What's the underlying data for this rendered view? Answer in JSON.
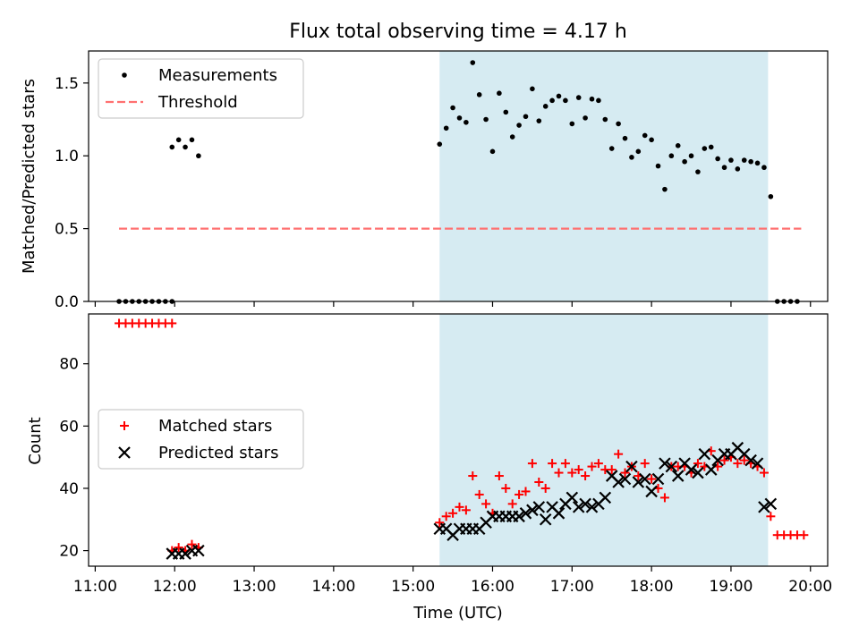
{
  "figure": {
    "title": "Flux total observing time = 4.17 h",
    "xlabel": "Time (UTC)"
  },
  "chart_data": [
    {
      "type": "scatter",
      "panel": "top",
      "ylabel": "Matched/Predicted stars",
      "xlim": [
        "10:55",
        "20:13"
      ],
      "ylim": [
        0,
        1.72
      ],
      "yticks": [
        "0.0",
        "0.5",
        "1.0",
        "1.5"
      ],
      "shaded_span": [
        "15:20",
        "19:28"
      ],
      "shade_color": "#add8e6",
      "legend": {
        "placement": "top-left",
        "entries": [
          "Measurements",
          "Threshold"
        ]
      },
      "series": [
        {
          "name": "Measurements",
          "marker": "dot",
          "color": "#000000",
          "points": [
            [
              "11:18",
              0
            ],
            [
              "11:23",
              0
            ],
            [
              "11:28",
              0
            ],
            [
              "11:33",
              0
            ],
            [
              "11:38",
              0
            ],
            [
              "11:43",
              0
            ],
            [
              "11:48",
              0
            ],
            [
              "11:53",
              0
            ],
            [
              "11:58",
              0
            ],
            [
              "11:58",
              1.06
            ],
            [
              "12:03",
              1.11
            ],
            [
              "12:08",
              1.06
            ],
            [
              "12:13",
              1.11
            ],
            [
              "12:18",
              1.0
            ],
            [
              "15:20",
              1.08
            ],
            [
              "15:25",
              1.19
            ],
            [
              "15:30",
              1.33
            ],
            [
              "15:35",
              1.26
            ],
            [
              "15:40",
              1.23
            ],
            [
              "15:45",
              1.64
            ],
            [
              "15:50",
              1.42
            ],
            [
              "15:55",
              1.25
            ],
            [
              "16:00",
              1.03
            ],
            [
              "16:05",
              1.43
            ],
            [
              "16:10",
              1.3
            ],
            [
              "16:15",
              1.13
            ],
            [
              "16:20",
              1.21
            ],
            [
              "16:25",
              1.27
            ],
            [
              "16:30",
              1.46
            ],
            [
              "16:35",
              1.24
            ],
            [
              "16:40",
              1.34
            ],
            [
              "16:45",
              1.38
            ],
            [
              "16:50",
              1.41
            ],
            [
              "16:55",
              1.38
            ],
            [
              "17:00",
              1.22
            ],
            [
              "17:05",
              1.4
            ],
            [
              "17:10",
              1.26
            ],
            [
              "17:15",
              1.39
            ],
            [
              "17:20",
              1.38
            ],
            [
              "17:25",
              1.25
            ],
            [
              "17:30",
              1.05
            ],
            [
              "17:35",
              1.22
            ],
            [
              "17:40",
              1.12
            ],
            [
              "17:45",
              0.99
            ],
            [
              "17:50",
              1.03
            ],
            [
              "17:55",
              1.14
            ],
            [
              "18:00",
              1.11
            ],
            [
              "18:05",
              0.93
            ],
            [
              "18:10",
              0.77
            ],
            [
              "18:15",
              1.0
            ],
            [
              "18:20",
              1.07
            ],
            [
              "18:25",
              0.96
            ],
            [
              "18:30",
              1.0
            ],
            [
              "18:35",
              0.89
            ],
            [
              "18:40",
              1.05
            ],
            [
              "18:45",
              1.06
            ],
            [
              "18:50",
              0.98
            ],
            [
              "18:55",
              0.92
            ],
            [
              "19:00",
              0.97
            ],
            [
              "19:05",
              0.91
            ],
            [
              "19:10",
              0.97
            ],
            [
              "19:15",
              0.96
            ],
            [
              "19:20",
              0.95
            ],
            [
              "19:25",
              0.92
            ],
            [
              "19:30",
              0.72
            ],
            [
              "19:35",
              0
            ],
            [
              "19:40",
              0
            ],
            [
              "19:45",
              0
            ],
            [
              "19:50",
              0
            ]
          ]
        },
        {
          "name": "Threshold",
          "marker": "dashed-line",
          "color": "#ff7070",
          "points": [
            [
              "11:18",
              0.5
            ],
            [
              "19:53",
              0.5
            ]
          ]
        }
      ]
    },
    {
      "type": "scatter",
      "panel": "bottom",
      "ylabel": "Count",
      "xlim": [
        "10:55",
        "20:13"
      ],
      "ylim": [
        15,
        96
      ],
      "yticks": [
        "20",
        "40",
        "60",
        "80"
      ],
      "shaded_span": [
        "15:20",
        "19:28"
      ],
      "shade_color": "#add8e6",
      "legend": {
        "placement": "center-left",
        "entries": [
          "Matched stars",
          "Predicted stars"
        ]
      },
      "xticks": [
        "11:00",
        "12:00",
        "13:00",
        "14:00",
        "15:00",
        "16:00",
        "17:00",
        "18:00",
        "19:00",
        "20:00"
      ],
      "series": [
        {
          "name": "Matched stars",
          "marker": "plus",
          "color": "#ff0000",
          "points": [
            [
              "11:18",
              93
            ],
            [
              "11:23",
              93
            ],
            [
              "11:28",
              93
            ],
            [
              "11:33",
              93
            ],
            [
              "11:38",
              93
            ],
            [
              "11:43",
              93
            ],
            [
              "11:48",
              93
            ],
            [
              "11:53",
              93
            ],
            [
              "11:58",
              93
            ],
            [
              "11:58",
              20
            ],
            [
              "12:03",
              21
            ],
            [
              "12:08",
              20
            ],
            [
              "12:13",
              22
            ],
            [
              "12:18",
              21
            ],
            [
              "15:20",
              29
            ],
            [
              "15:25",
              31
            ],
            [
              "15:30",
              32
            ],
            [
              "15:35",
              34
            ],
            [
              "15:40",
              33
            ],
            [
              "15:45",
              44
            ],
            [
              "15:50",
              38
            ],
            [
              "15:55",
              35
            ],
            [
              "16:00",
              32
            ],
            [
              "16:05",
              44
            ],
            [
              "16:10",
              40
            ],
            [
              "16:15",
              35
            ],
            [
              "16:20",
              38
            ],
            [
              "16:25",
              39
            ],
            [
              "16:30",
              48
            ],
            [
              "16:35",
              42
            ],
            [
              "16:40",
              40
            ],
            [
              "16:45",
              48
            ],
            [
              "16:50",
              45
            ],
            [
              "16:55",
              48
            ],
            [
              "17:00",
              45
            ],
            [
              "17:05",
              46
            ],
            [
              "17:10",
              44
            ],
            [
              "17:15",
              47
            ],
            [
              "17:20",
              48
            ],
            [
              "17:25",
              46
            ],
            [
              "17:30",
              46
            ],
            [
              "17:35",
              51
            ],
            [
              "17:40",
              45
            ],
            [
              "17:45",
              47
            ],
            [
              "17:50",
              44
            ],
            [
              "17:55",
              48
            ],
            [
              "18:00",
              43
            ],
            [
              "18:05",
              40
            ],
            [
              "18:10",
              37
            ],
            [
              "18:15",
              47
            ],
            [
              "18:20",
              47
            ],
            [
              "18:25",
              47
            ],
            [
              "18:30",
              45
            ],
            [
              "18:35",
              48
            ],
            [
              "18:40",
              47
            ],
            [
              "18:45",
              52
            ],
            [
              "18:50",
              47
            ],
            [
              "18:55",
              49
            ],
            [
              "19:00",
              50
            ],
            [
              "19:05",
              48
            ],
            [
              "19:10",
              49
            ],
            [
              "19:15",
              48
            ],
            [
              "19:20",
              47
            ],
            [
              "19:25",
              45
            ],
            [
              "19:30",
              31
            ],
            [
              "19:35",
              25
            ],
            [
              "19:40",
              25
            ],
            [
              "19:45",
              25
            ],
            [
              "19:50",
              25
            ],
            [
              "19:55",
              25
            ]
          ]
        },
        {
          "name": "Predicted stars",
          "marker": "x",
          "color": "#000000",
          "points": [
            [
              "11:58",
              19
            ],
            [
              "12:03",
              19
            ],
            [
              "12:08",
              19
            ],
            [
              "12:13",
              20
            ],
            [
              "12:18",
              20
            ],
            [
              "15:20",
              27
            ],
            [
              "15:25",
              27
            ],
            [
              "15:30",
              25
            ],
            [
              "15:35",
              27
            ],
            [
              "15:40",
              27
            ],
            [
              "15:45",
              27
            ],
            [
              "15:50",
              27
            ],
            [
              "15:55",
              29
            ],
            [
              "16:00",
              31
            ],
            [
              "16:05",
              31
            ],
            [
              "16:10",
              31
            ],
            [
              "16:15",
              31
            ],
            [
              "16:20",
              31
            ],
            [
              "16:25",
              32
            ],
            [
              "16:30",
              33
            ],
            [
              "16:35",
              34
            ],
            [
              "16:40",
              30
            ],
            [
              "16:45",
              34
            ],
            [
              "16:50",
              32
            ],
            [
              "16:55",
              35
            ],
            [
              "17:00",
              37
            ],
            [
              "17:05",
              34
            ],
            [
              "17:10",
              35
            ],
            [
              "17:15",
              34
            ],
            [
              "17:20",
              35
            ],
            [
              "17:25",
              37
            ],
            [
              "17:30",
              44
            ],
            [
              "17:35",
              42
            ],
            [
              "17:40",
              43
            ],
            [
              "17:45",
              47
            ],
            [
              "17:50",
              42
            ],
            [
              "17:55",
              43
            ],
            [
              "18:00",
              39
            ],
            [
              "18:05",
              43
            ],
            [
              "18:10",
              48
            ],
            [
              "18:15",
              47
            ],
            [
              "18:20",
              44
            ],
            [
              "18:25",
              48
            ],
            [
              "18:30",
              46
            ],
            [
              "18:35",
              45
            ],
            [
              "18:40",
              51
            ],
            [
              "18:45",
              46
            ],
            [
              "18:50",
              49
            ],
            [
              "18:55",
              51
            ],
            [
              "19:00",
              51
            ],
            [
              "19:05",
              53
            ],
            [
              "19:10",
              51
            ],
            [
              "19:15",
              49
            ],
            [
              "19:20",
              48
            ],
            [
              "19:25",
              34
            ],
            [
              "19:30",
              35
            ]
          ]
        }
      ]
    }
  ]
}
